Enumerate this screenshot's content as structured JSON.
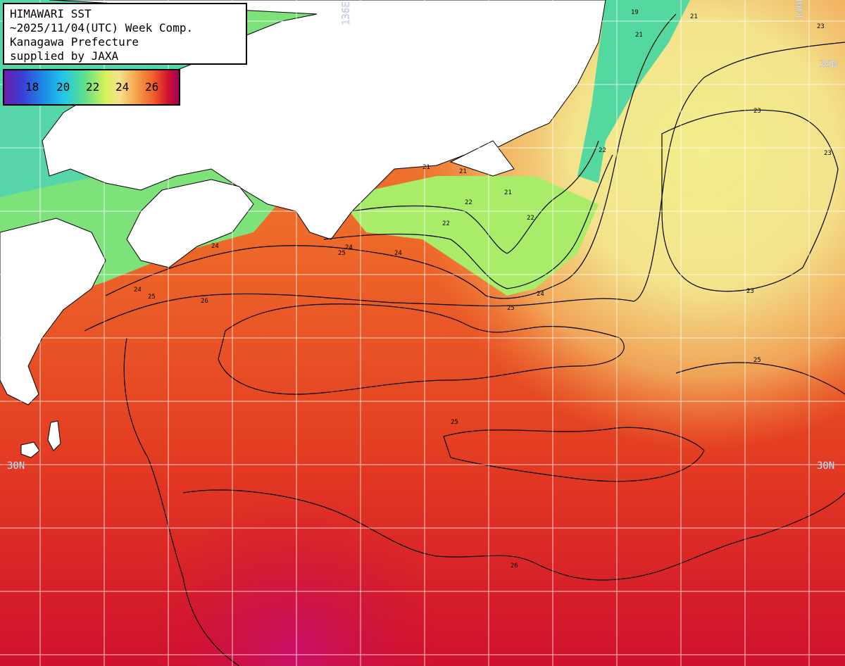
{
  "title": {
    "line1": "HIMAWARI SST",
    "line2": "~2025/11/04(UTC) Week Comp.",
    "line3": "Kanagawa Prefecture",
    "line4": "supplied by JAXA"
  },
  "legend": {
    "ticks": [
      "18",
      "20",
      "22",
      "24",
      "26"
    ]
  },
  "grid_labels": {
    "lon_136": "136E",
    "lon_140": "140E",
    "lat_35_right": "35N",
    "lat_30_left": "30N",
    "lat_30_right": "30N"
  },
  "contour_labels": [
    "19",
    "21",
    "21",
    "21",
    "21",
    "21",
    "22",
    "22",
    "22",
    "22",
    "23",
    "23",
    "23",
    "23",
    "24",
    "24",
    "24",
    "24",
    "24",
    "25",
    "25",
    "25",
    "25",
    "25",
    "26",
    "26"
  ],
  "colors": {
    "land": "#ffffff",
    "coastline": "#000000",
    "grid": "#ffffff",
    "contour": "#000000"
  }
}
